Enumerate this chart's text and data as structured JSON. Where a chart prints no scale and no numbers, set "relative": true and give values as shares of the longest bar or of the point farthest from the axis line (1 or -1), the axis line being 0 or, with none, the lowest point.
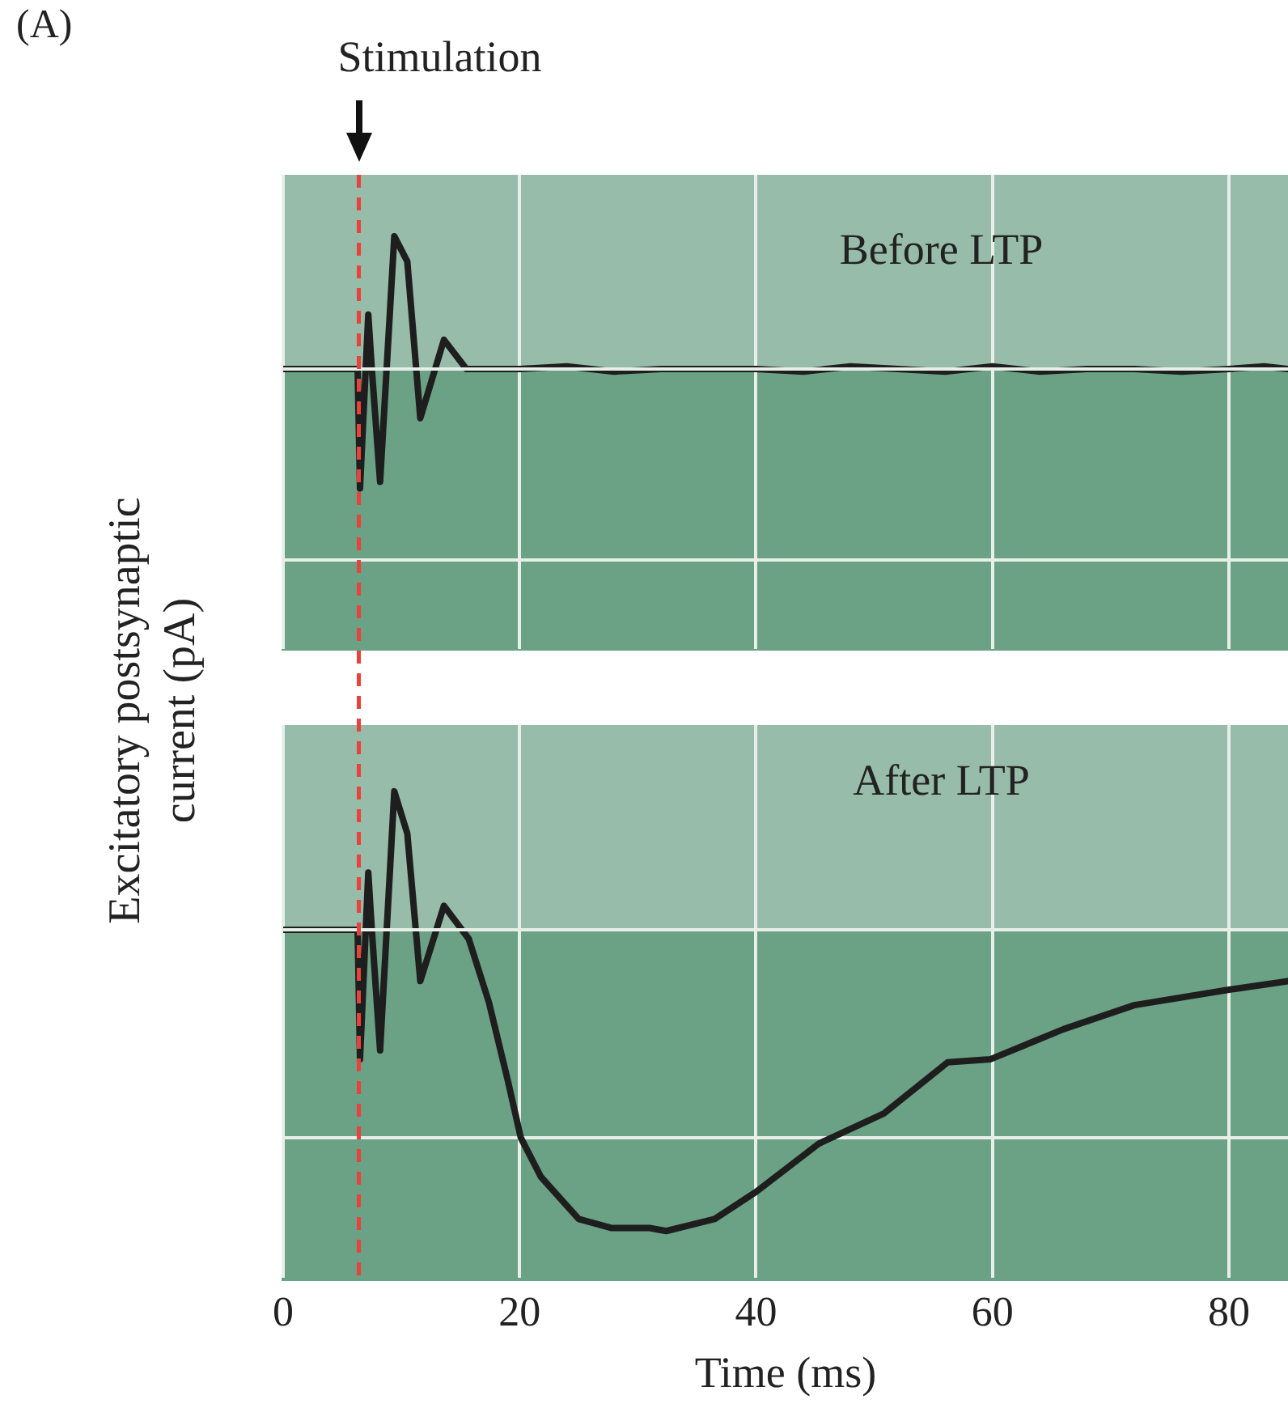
{
  "chart_data": [
    {
      "type": "line",
      "title": "Before LTP",
      "ylabel": "Excitatory postsynaptic current (pA)",
      "annotations": [
        "(A)"
      ],
      "relative": true,
      "xlim": [
        0,
        85
      ],
      "xticks": [
        0,
        20,
        40,
        60,
        80
      ],
      "tick_labels": false,
      "grid": "x",
      "legend": false,
      "marker": "none",
      "ref_lines": [
        {
          "axis": "x",
          "value": 6.4,
          "label": "Stimulation",
          "color": "#e8423c",
          "line_style": "dashed"
        }
      ],
      "series": [
        {
          "color": "#1e1e1e",
          "x": [
            0,
            3,
            6.3,
            6.5,
            7.2,
            7.5,
            8.2,
            9.4,
            10.5,
            11.6,
            13.6,
            15.5,
            20,
            24,
            28,
            32,
            36,
            40,
            44,
            48,
            52,
            56,
            60,
            64,
            68,
            72,
            76,
            80,
            83,
            85
          ],
          "values": [
            0,
            0,
            0,
            -0.9,
            0.41,
            0,
            -0.85,
            1,
            0.81,
            -0.37,
            0.22,
            0,
            0,
            0.02,
            -0.02,
            0,
            0,
            0,
            -0.02,
            0.02,
            0,
            -0.02,
            0.02,
            -0.02,
            0,
            0,
            -0.02,
            0,
            0.02,
            0
          ]
        }
      ]
    },
    {
      "type": "line",
      "title": "After LTP",
      "xlabel": "Time (ms)",
      "relative": true,
      "xlim": [
        0,
        85
      ],
      "xticks": [
        0,
        20,
        40,
        60,
        80
      ],
      "tick_labels": "x",
      "grid": "x",
      "legend": false,
      "marker": "none",
      "ref_lines": [
        {
          "axis": "x",
          "value": 6.4,
          "color": "#e8423c",
          "line_style": "dashed"
        }
      ],
      "series": [
        {
          "color": "#1e1e1e",
          "x": [
            0,
            3,
            6.3,
            6.5,
            7.2,
            7.5,
            8.2,
            9.4,
            10.5,
            11.6,
            13.6,
            15.7,
            17.4,
            19,
            20.1,
            21.8,
            25,
            27.8,
            31,
            32.4,
            36.5,
            40,
            45.3,
            50.8,
            56.2,
            59.8,
            66,
            72,
            79.8,
            85
          ],
          "values": [
            0,
            0,
            0,
            -0.43,
            0.19,
            0,
            -0.4,
            0.46,
            0.32,
            -0.17,
            0.08,
            -0.03,
            -0.24,
            -0.5,
            -0.69,
            -0.82,
            -0.96,
            -0.99,
            -0.99,
            -1,
            -0.96,
            -0.87,
            -0.71,
            -0.61,
            -0.44,
            -0.43,
            -0.33,
            -0.25,
            -0.2,
            -0.17
          ]
        }
      ]
    }
  ]
}
